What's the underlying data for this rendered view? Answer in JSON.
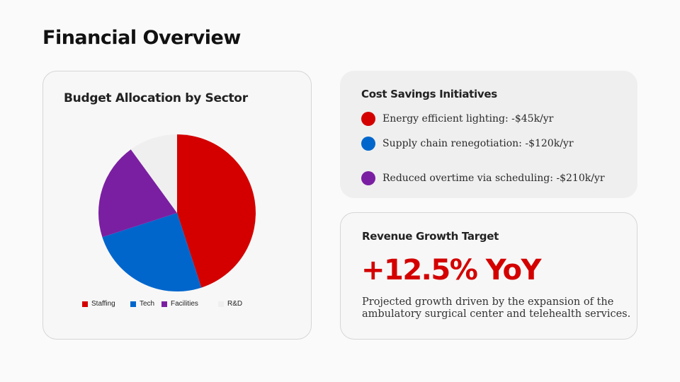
{
  "page": {
    "title": "Financial Overview"
  },
  "budget_card": {
    "title": "Budget Allocation by Sector",
    "legend": [
      {
        "label": "Staffing",
        "color": "#d40000"
      },
      {
        "label": "Tech",
        "color": "#0066cc"
      },
      {
        "label": "Facilities",
        "color": "#7b1fa2"
      },
      {
        "label": "R&D",
        "color": "#efefef"
      }
    ]
  },
  "savings_card": {
    "title": "Cost Savings Initiatives",
    "items": [
      {
        "label": "Energy efficient lighting: -$45k/yr",
        "color": "#d40000"
      },
      {
        "label": "Supply chain renegotiation: -$120k/yr",
        "color": "#0066cc"
      },
      {
        "label": "Reduced overtime via scheduling: -$210k/yr",
        "color": "#7b1fa2"
      }
    ]
  },
  "revenue_card": {
    "title": "Revenue Growth Target",
    "metric": "+12.5% YoY",
    "description": "Projected growth driven by the expansion of the ambulatory surgical center and telehealth services."
  },
  "colors": {
    "accent": "#d40000",
    "blue": "#0066cc",
    "purple": "#7b1fa2",
    "neutral": "#efefef"
  },
  "chart_data": {
    "type": "pie",
    "title": "Budget Allocation by Sector",
    "categories": [
      "Staffing",
      "Tech",
      "Facilities",
      "R&D"
    ],
    "values": [
      45,
      25,
      20,
      10
    ],
    "colors": [
      "#d40000",
      "#0066cc",
      "#7b1fa2",
      "#efefef"
    ],
    "start_angle": "12 o'clock, clockwise",
    "legend_position": "bottom"
  }
}
